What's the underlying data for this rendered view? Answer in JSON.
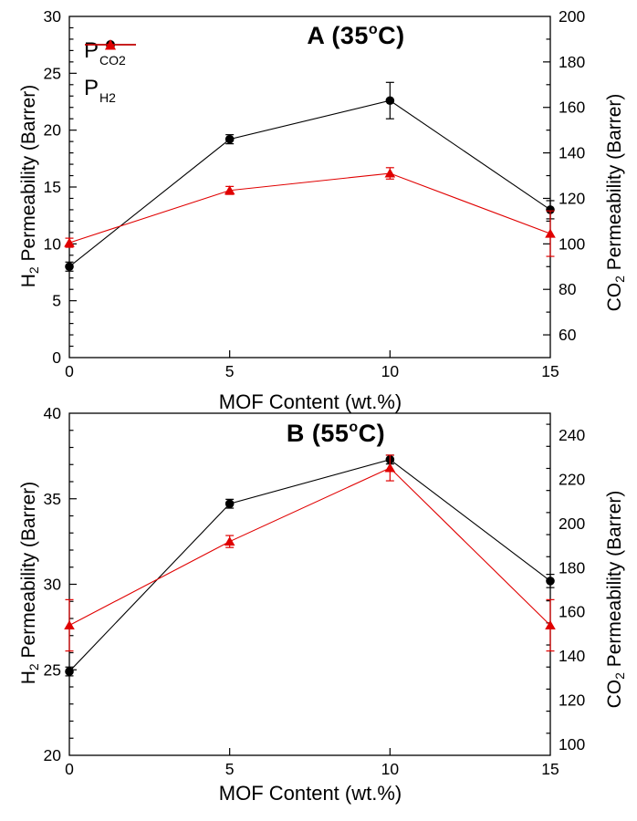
{
  "figure": {
    "background": "#ffffff",
    "series_colors": {
      "pco2": "#000000",
      "ph2": "#e00000"
    }
  },
  "chart_data": [
    {
      "type": "line",
      "title": {
        "pre": "A (35",
        "sup": "o",
        "post": "C)"
      },
      "xlabel": "MOF Content (wt.%)",
      "x_axis": {
        "range": [
          0,
          15
        ],
        "ticks": [
          0,
          5,
          10,
          15
        ]
      },
      "left_axis": {
        "label": {
          "pre": "H",
          "sub": "2",
          "post": " Permeability (Barrer)"
        },
        "range": [
          0,
          30
        ],
        "ticks": [
          0,
          5,
          10,
          15,
          20,
          25,
          30
        ],
        "minor_step": 1
      },
      "right_axis": {
        "label": {
          "pre": "CO",
          "sub": "2",
          "post": " Permeability (Barrer)"
        },
        "range": [
          50,
          200
        ],
        "ticks": [
          60,
          80,
          100,
          120,
          140,
          160,
          180,
          200
        ],
        "minor_step": 10
      },
      "legend": {
        "items": [
          {
            "label_pre": "P",
            "label_sub": "CO2"
          },
          {
            "label_pre": "P",
            "label_sub": "H2"
          }
        ]
      },
      "series": [
        {
          "name": "P_CO2",
          "axis": "right",
          "color": "#000000",
          "marker": "circle",
          "x": [
            0,
            5,
            10,
            15
          ],
          "y": [
            90,
            146,
            163,
            115
          ],
          "yerr": [
            2,
            2,
            8,
            4
          ]
        },
        {
          "name": "P_H2",
          "axis": "left",
          "color": "#e00000",
          "marker": "triangle",
          "x": [
            0,
            5,
            10,
            15
          ],
          "y": [
            10.1,
            14.7,
            16.2,
            10.9
          ],
          "yerr": [
            0.4,
            0.35,
            0.5,
            2.0
          ]
        }
      ]
    },
    {
      "type": "line",
      "title": {
        "pre": "B (55",
        "sup": "o",
        "post": "C)"
      },
      "xlabel": "MOF Content (wt.%)",
      "x_axis": {
        "range": [
          0,
          15
        ],
        "ticks": [
          0,
          5,
          10,
          15
        ]
      },
      "left_axis": {
        "label": {
          "pre": "H",
          "sub": "2",
          "post": " Permeability (Barrer)"
        },
        "range": [
          20,
          40
        ],
        "ticks": [
          20,
          25,
          30,
          35,
          40
        ],
        "minor_step": 1
      },
      "right_axis": {
        "label": {
          "pre": "CO",
          "sub": "2",
          "post": " Permeability (Barrer)"
        },
        "range": [
          95,
          250
        ],
        "ticks": [
          100,
          120,
          140,
          160,
          180,
          200,
          220,
          240
        ],
        "minor_step": 10
      },
      "series": [
        {
          "name": "P_CO2",
          "axis": "right",
          "color": "#000000",
          "marker": "circle",
          "x": [
            0,
            5,
            10,
            15
          ],
          "y": [
            133,
            209,
            229,
            174
          ],
          "yerr": [
            2,
            2,
            2,
            3
          ]
        },
        {
          "name": "P_H2",
          "axis": "left",
          "color": "#e00000",
          "marker": "triangle",
          "x": [
            0,
            5,
            10,
            15
          ],
          "y": [
            27.6,
            32.5,
            36.8,
            27.6
          ],
          "yerr": [
            1.5,
            0.35,
            0.75,
            1.5
          ]
        }
      ]
    }
  ]
}
